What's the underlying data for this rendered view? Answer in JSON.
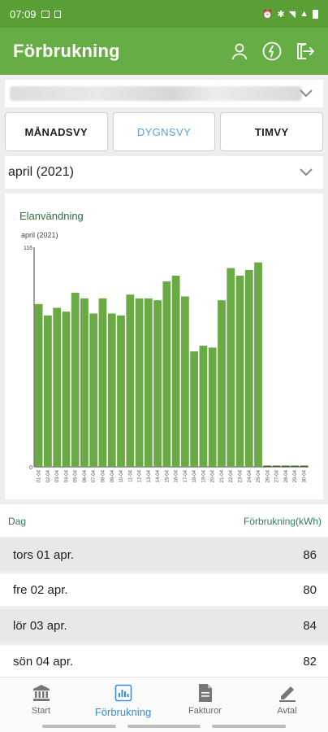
{
  "status_bar": {
    "time": "07:09"
  },
  "app_bar": {
    "title": "Förbrukning",
    "icons": [
      "user-icon",
      "energy-icon",
      "logout-icon"
    ]
  },
  "tabs": [
    {
      "label": "MÅNADSVY",
      "active": false
    },
    {
      "label": "DYGNSVY",
      "active": true
    },
    {
      "label": "TIMVY",
      "active": false
    }
  ],
  "period_select": {
    "value": "april (2021)"
  },
  "chart_data": {
    "type": "bar",
    "title": "Elanvändning",
    "subtitle": "april (2021)",
    "ylim": [
      0,
      116
    ],
    "yticks": [
      "0",
      "116"
    ],
    "color": "#6aaa45",
    "categories": [
      "01-04",
      "02-04",
      "03-04",
      "04-04",
      "05-04",
      "06-04",
      "07-04",
      "08-04",
      "09-04",
      "10-04",
      "11-04",
      "12-04",
      "13-04",
      "14-04",
      "15-04",
      "16-04",
      "17-04",
      "18-04",
      "19-04",
      "20-04",
      "21-04",
      "22-04",
      "23-04",
      "24-04",
      "25-04",
      "26-04",
      "27-04",
      "28-04",
      "29-04",
      "30-04"
    ],
    "values": [
      86,
      80,
      84,
      82,
      92,
      89,
      81,
      89,
      81,
      80,
      91,
      89,
      89,
      88,
      98,
      101,
      90,
      61,
      64,
      63,
      88,
      105,
      101,
      104,
      108,
      0,
      0,
      0,
      0,
      0
    ]
  },
  "table": {
    "col_day": "Dag",
    "col_value": "Förbrukning(kWh)",
    "rows": [
      {
        "day": "tors 01 apr.",
        "value": "86"
      },
      {
        "day": "fre 02 apr.",
        "value": "80"
      },
      {
        "day": "lör 03 apr.",
        "value": "84"
      },
      {
        "day": "sön 04 apr.",
        "value": "82"
      }
    ]
  },
  "bottom_nav": [
    {
      "label": "Start",
      "icon": "bank-icon",
      "active": false
    },
    {
      "label": "Förbrukning",
      "icon": "chart-icon",
      "active": true
    },
    {
      "label": "Fakturor",
      "icon": "document-icon",
      "active": false
    },
    {
      "label": "Avtal",
      "icon": "pen-icon",
      "active": false
    }
  ],
  "colors": {
    "app_bar": "#66ad45",
    "status_bar": "#5a9e36",
    "accent_blue": "#5b9fd8",
    "header_green": "#2e7b55"
  }
}
